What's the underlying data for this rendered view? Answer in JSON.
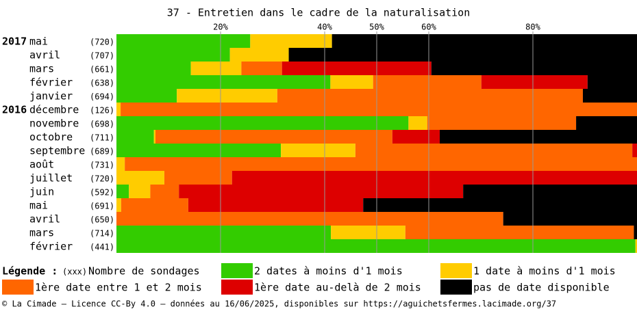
{
  "chart_data": {
    "type": "stacked-bar-horizontal",
    "title": "37 - Entretien dans le cadre de la naturalisation",
    "categories": [
      "mai",
      "avril",
      "mars",
      "février",
      "janvier",
      "décembre",
      "novembre",
      "octobre",
      "septembre",
      "août",
      "juillet",
      "juin",
      "mai",
      "avril",
      "mars",
      "février"
    ],
    "years": [
      "2017",
      null,
      null,
      null,
      null,
      "2016",
      null,
      null,
      null,
      null,
      null,
      null,
      null,
      null,
      null,
      null
    ],
    "counts": [
      "(720)",
      "(707)",
      "(661)",
      "(638)",
      "(694)",
      "(126)",
      "(698)",
      "(711)",
      "(689)",
      "(731)",
      "(720)",
      "(592)",
      "(691)",
      "(650)",
      "(714)",
      "(441)"
    ],
    "xlim": [
      0,
      100
    ],
    "xticks": [
      {
        "value": 20,
        "label": "20%"
      },
      {
        "value": 40,
        "label": "40%"
      },
      {
        "value": 50,
        "label": "50%"
      },
      {
        "value": 60,
        "label": "60%"
      },
      {
        "value": 80,
        "label": "80%"
      }
    ],
    "grid": true,
    "series": [
      {
        "name": "2 dates à moins d'1 mois",
        "color": "#33cc00",
        "values": [
          25.7,
          21.8,
          14.3,
          41.1,
          11.6,
          0,
          56.1,
          7.2,
          31.6,
          0,
          0,
          2.4,
          0,
          0,
          41.2,
          99.7
        ]
      },
      {
        "name": "1 date à moins d'1 mois",
        "color": "#ffcc00",
        "values": [
          15.7,
          11.3,
          9.7,
          8.2,
          19.3,
          0.8,
          3.6,
          0.3,
          14.3,
          1.6,
          9.2,
          4.1,
          0.9,
          0,
          14.3,
          0.3
        ]
      },
      {
        "name": "1ère date entre 1 et 2 mois",
        "color": "#ff6600",
        "values": [
          0,
          0,
          7.8,
          20.8,
          58.7,
          99.2,
          28.6,
          45.5,
          53.2,
          98.4,
          13.0,
          5.5,
          12.9,
          74.3,
          43.9,
          0
        ]
      },
      {
        "name": "1ère date au-delà de 2 mois",
        "color": "#dd0000",
        "values": [
          0,
          0,
          28.7,
          20.4,
          0,
          0,
          0,
          9.1,
          0.9,
          0,
          77.8,
          54.6,
          33.6,
          0,
          0,
          0
        ]
      },
      {
        "name": "pas de date disponible",
        "color": "#000000",
        "values": [
          58.6,
          66.9,
          39.5,
          9.5,
          10.4,
          0,
          11.7,
          37.9,
          0,
          0,
          0,
          33.4,
          52.6,
          25.7,
          0.6,
          0
        ]
      }
    ],
    "legend_title": "Légende :",
    "legend_count_sample": "(xxx)",
    "legend_count_label": "Nombre de sondages",
    "footer": "© La Cimade — Licence CC-By 4.0 — données au 16/06/2025, disponibles sur https://aguichetsfermes.lacimade.org/37"
  }
}
